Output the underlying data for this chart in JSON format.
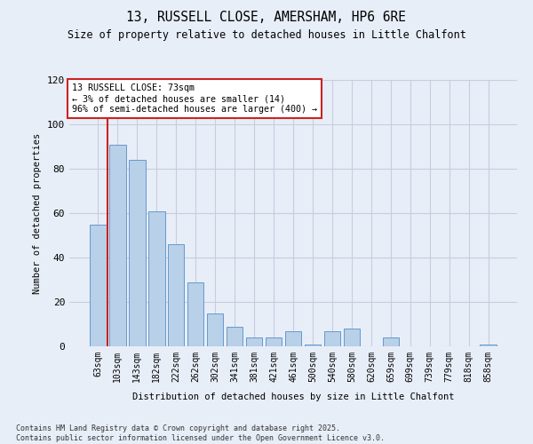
{
  "title1": "13, RUSSELL CLOSE, AMERSHAM, HP6 6RE",
  "title2": "Size of property relative to detached houses in Little Chalfont",
  "xlabel": "Distribution of detached houses by size in Little Chalfont",
  "ylabel": "Number of detached properties",
  "categories": [
    "63sqm",
    "103sqm",
    "143sqm",
    "182sqm",
    "222sqm",
    "262sqm",
    "302sqm",
    "341sqm",
    "381sqm",
    "421sqm",
    "461sqm",
    "500sqm",
    "540sqm",
    "580sqm",
    "620sqm",
    "659sqm",
    "699sqm",
    "739sqm",
    "779sqm",
    "818sqm",
    "858sqm"
  ],
  "values": [
    55,
    91,
    84,
    61,
    46,
    29,
    15,
    9,
    4,
    4,
    7,
    1,
    7,
    8,
    0,
    4,
    0,
    0,
    0,
    0,
    1
  ],
  "bar_color": "#b8d0e8",
  "bar_edge_color": "#6699cc",
  "highlight_color": "#cc2222",
  "ylim": [
    0,
    120
  ],
  "yticks": [
    0,
    20,
    40,
    60,
    80,
    100,
    120
  ],
  "annotation_box_text": "13 RUSSELL CLOSE: 73sqm\n← 3% of detached houses are smaller (14)\n96% of semi-detached houses are larger (400) →",
  "annotation_box_color": "#ffffff",
  "annotation_box_edge_color": "#cc2222",
  "footer_text": "Contains HM Land Registry data © Crown copyright and database right 2025.\nContains public sector information licensed under the Open Government Licence v3.0.",
  "background_color": "#e8eef8",
  "grid_color": "#c8cce0",
  "red_line_x": 0.47
}
